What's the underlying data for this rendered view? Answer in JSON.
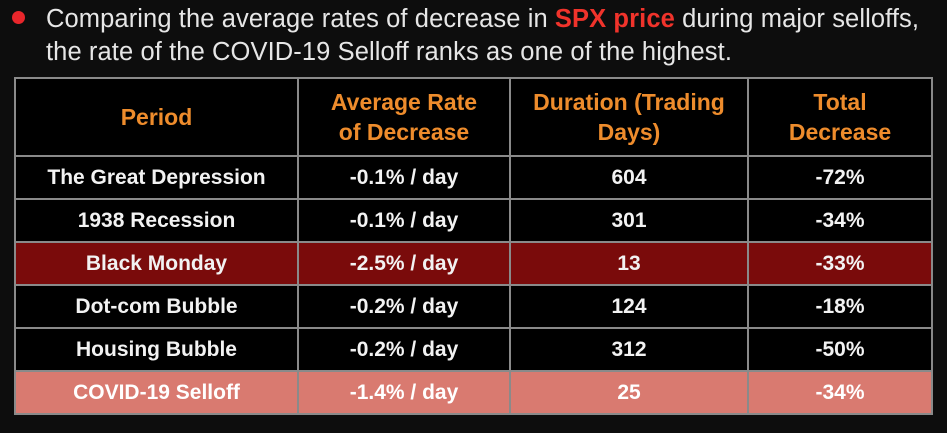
{
  "bullet": {
    "text_before": "Comparing the average rates of decrease in ",
    "highlight": "SPX price",
    "text_after": " during major selloffs, the rate of the COVID-19 Selloff ranks as one of the highest."
  },
  "table": {
    "headers": [
      "Period",
      "Average Rate of Decrease",
      "Duration (Trading Days)",
      "Total Decrease"
    ],
    "rows": [
      {
        "period": "The Great Depression",
        "rate": "-0.1% / day",
        "duration": "604",
        "total": "-72%"
      },
      {
        "period": "1938 Recession",
        "rate": "-0.1% / day",
        "duration": "301",
        "total": "-34%"
      },
      {
        "period": "Black Monday",
        "rate": "-2.5% / day",
        "duration": "13",
        "total": "-33%"
      },
      {
        "period": "Dot-com Bubble",
        "rate": "-0.2% / day",
        "duration": "124",
        "total": "-18%"
      },
      {
        "period": "Housing Bubble",
        "rate": "-0.2% / day",
        "duration": "312",
        "total": "-50%"
      },
      {
        "period": "COVID-19 Selloff",
        "rate": "-1.4% / day",
        "duration": "25",
        "total": "-34%"
      }
    ]
  },
  "colors": {
    "background": "#0d0d0d",
    "bullet": "#e8262b",
    "highlight": "#f0332b",
    "header_text": "#ee8c2c",
    "black_monday_row": "#7a0b0b",
    "covid_row": "#d97a70",
    "border": "#8a8a8a"
  }
}
